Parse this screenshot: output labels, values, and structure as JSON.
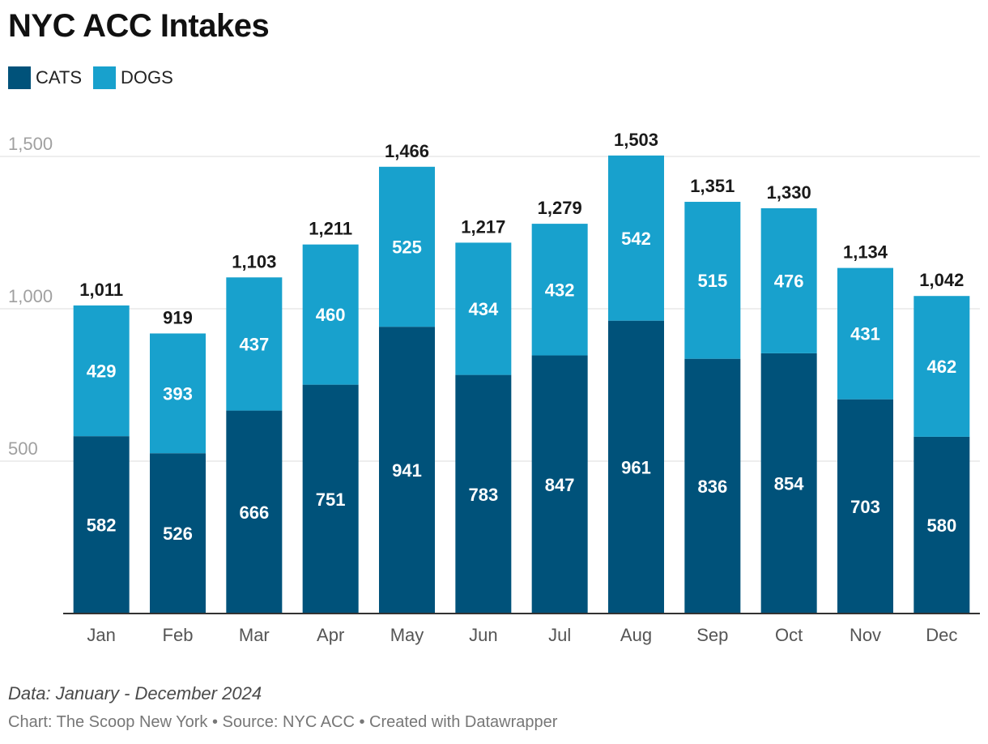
{
  "header": {
    "title": "NYC ACC Intakes"
  },
  "footer": {
    "note": "Data: January - December 2024",
    "credits": "Chart: The Scoop New York • Source: NYC ACC • Created with Datawrapper"
  },
  "colors": {
    "cats": "#00527a",
    "dogs": "#18a1cd",
    "grid": "#dddddd",
    "axis": "#333333",
    "tick": "#a0a0a0"
  },
  "chart_data": {
    "type": "bar",
    "stacked": true,
    "title": "NYC ACC Intakes",
    "xlabel": "",
    "ylabel": "",
    "ylim": [
      0,
      1500
    ],
    "yticks": [
      500,
      1000,
      1500
    ],
    "ytick_labels": [
      "500",
      "1,000",
      "1,500"
    ],
    "grid": true,
    "legend_position": "top-left",
    "categories": [
      "Jan",
      "Feb",
      "Mar",
      "Apr",
      "May",
      "Jun",
      "Jul",
      "Aug",
      "Sep",
      "Oct",
      "Nov",
      "Dec"
    ],
    "series": [
      {
        "name": "CATS",
        "values": [
          582,
          526,
          666,
          751,
          941,
          783,
          847,
          961,
          836,
          854,
          703,
          580
        ]
      },
      {
        "name": "DOGS",
        "values": [
          429,
          393,
          437,
          460,
          525,
          434,
          432,
          542,
          515,
          476,
          431,
          462
        ]
      }
    ],
    "totals": [
      1011,
      919,
      1103,
      1211,
      1466,
      1217,
      1279,
      1503,
      1351,
      1330,
      1134,
      1042
    ]
  }
}
